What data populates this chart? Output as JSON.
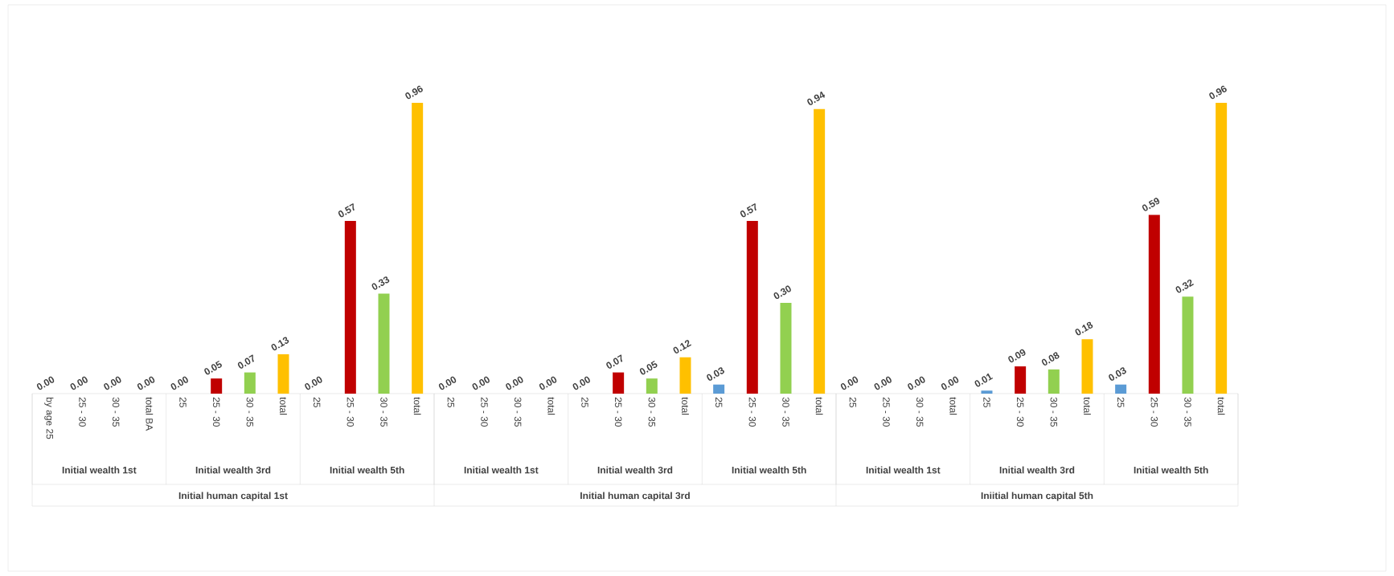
{
  "chart_data": {
    "type": "bar",
    "categories": [
      "by age 25",
      "25 - 30",
      "30 - 35",
      "total BA",
      "25",
      "25 - 30",
      "30 - 35",
      "total",
      "25",
      "25 - 30",
      "30 - 35",
      "total",
      "25",
      "25 - 30",
      "30 - 35",
      "total",
      "25",
      "25 - 30",
      "30 - 35",
      "total",
      "25",
      "25 - 30",
      "30 - 35",
      "total",
      "25",
      "25 - 30",
      "30 - 35",
      "total",
      "25",
      "25 - 30",
      "30 - 35",
      "total",
      "25",
      "25 - 30",
      "30 - 35",
      "total"
    ],
    "values": [
      0,
      0,
      0,
      0,
      0,
      0.05,
      0.07,
      0.13,
      0,
      0.57,
      0.33,
      0.96,
      0,
      0,
      0,
      0,
      0,
      0.07,
      0.05,
      0.12,
      0.03,
      0.57,
      0.3,
      0.94,
      0,
      0,
      0,
      0,
      0.01,
      0.09,
      0.08,
      0.18,
      0.03,
      0.59,
      0.32,
      0.96
    ],
    "value_labels": [
      "0.00",
      "0.00",
      "0.00",
      "0.00",
      "0.00",
      "0.05",
      "0.07",
      "0.13",
      "0.00",
      "0.57",
      "0.33",
      "0.96",
      "0.00",
      "0.00",
      "0.00",
      "0.00",
      "0.00",
      "0.07",
      "0.05",
      "0.12",
      "0.03",
      "0.57",
      "0.30",
      "0.94",
      "0.00",
      "0.00",
      "0.00",
      "0.00",
      "0.01",
      "0.09",
      "0.08",
      "0.18",
      "0.03",
      "0.59",
      "0.32",
      "0.96"
    ],
    "colors": [
      "#5b9bd5",
      "#c00000",
      "#92d050",
      "#ffc000",
      "#5b9bd5",
      "#c00000",
      "#92d050",
      "#ffc000",
      "#5b9bd5",
      "#c00000",
      "#92d050",
      "#ffc000",
      "#5b9bd5",
      "#c00000",
      "#92d050",
      "#ffc000",
      "#5b9bd5",
      "#c00000",
      "#92d050",
      "#ffc000",
      "#5b9bd5",
      "#c00000",
      "#92d050",
      "#ffc000",
      "#5b9bd5",
      "#c00000",
      "#92d050",
      "#ffc000",
      "#5b9bd5",
      "#c00000",
      "#92d050",
      "#ffc000",
      "#5b9bd5",
      "#c00000",
      "#92d050",
      "#ffc000"
    ],
    "annotations": [
      "Initial wealth 1st",
      "Initial wealth 3rd",
      "Initial wealth 5th",
      "Initial wealth 1st",
      "Initial wealth 3rd",
      "Initial wealth 5th",
      "Initial wealth 1st",
      "Initial wealth 3rd",
      "Initial wealth 5th",
      "Initial human capital 1st",
      "Initial human capital 3rd",
      "Iniitial human capital 5th"
    ],
    "data_labels": false
  }
}
